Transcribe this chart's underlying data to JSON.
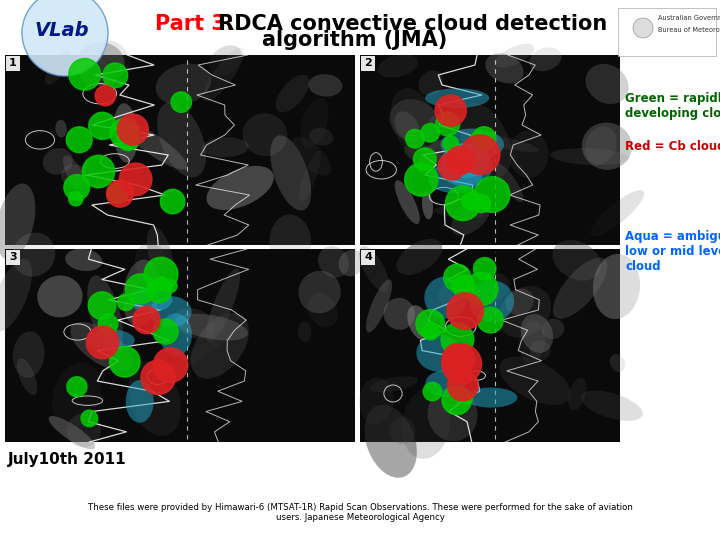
{
  "title_part3": "Part 3:",
  "title_rest": " RDCA convective cloud detection",
  "title_line2": "algorithm (JMA)",
  "title_part3_color": "#FF0000",
  "title_rest_color": "#000000",
  "bg_color": "#FFFFFF",
  "panel_labels": [
    "1",
    "2",
    "3",
    "4"
  ],
  "legend_green_text": "Green = rapidly\ndeveloping cloud.",
  "legend_red_text": "Red = Cb cloud.",
  "legend_aqua_text": "Aqua = ambiguous\nlow or mid level\ncloud",
  "legend_green_color": "#006600",
  "legend_red_color": "#CC0000",
  "legend_aqua_color": "#0066FF",
  "date_text": "July10th 2011",
  "footer_text": "These files were provided by Himawari-6 (MTSAT-1R) Rapid Scan Observations. These were performed for the sake of aviation\nusers. Japanese Meteorological Agency"
}
